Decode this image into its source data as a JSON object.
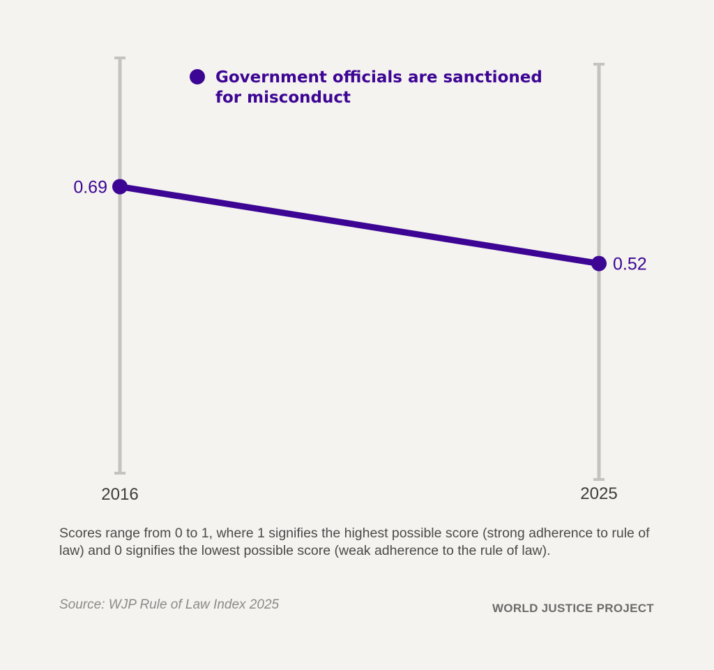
{
  "chart_data": {
    "type": "line",
    "x": [
      "2016",
      "2025"
    ],
    "series": [
      {
        "name": "Government officials are sanctioned for misconduct",
        "values": [
          0.69,
          0.52
        ],
        "value_labels": [
          "0.69",
          "0.52"
        ]
      }
    ],
    "legend_lines": [
      "Government officials are sanctioned",
      "for misconduct"
    ],
    "legend_placement": "top",
    "ylim": [
      0,
      1
    ],
    "grid": false,
    "colors": {
      "series": "#3d0594",
      "axis": "#c4c3bf"
    }
  },
  "footer": {
    "note": "Scores range from 0 to 1, where 1 signifies the highest possible score (strong adherence to rule of law) and 0 signifies the lowest possible score (weak adherence to the rule of law).",
    "source": "Source: WJP Rule of Law Index 2025",
    "brand": "WORLD JUSTICE PROJECT"
  }
}
